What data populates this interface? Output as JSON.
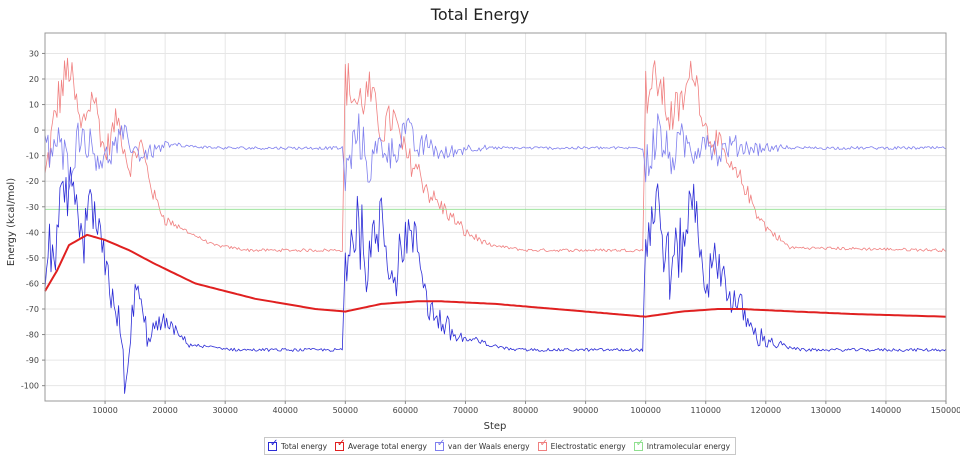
{
  "chart_data": {
    "type": "line",
    "title": "Total Energy",
    "xlabel": "Step",
    "ylabel": "Energy (kcal/mol)",
    "xlim": [
      0,
      150000
    ],
    "ylim": [
      -106,
      38
    ],
    "x_ticks": [
      10000,
      20000,
      30000,
      40000,
      50000,
      60000,
      70000,
      80000,
      90000,
      100000,
      110000,
      120000,
      130000,
      140000,
      150000
    ],
    "y_ticks": [
      30,
      20,
      10,
      0,
      -10,
      -20,
      -30,
      -40,
      -50,
      -60,
      -70,
      -80,
      -90,
      -100
    ],
    "grid": true,
    "legend_position": "bottom",
    "series": [
      {
        "name": "Total energy",
        "color": "#2b2bd6",
        "x": [
          0,
          2000,
          4000,
          6000,
          8000,
          10000,
          12000,
          13500,
          15000,
          17000,
          20000,
          24000,
          28000,
          32000,
          40000,
          49500,
          50000,
          52000,
          54000,
          56000,
          58000,
          60000,
          62000,
          64000,
          66000,
          68000,
          70000,
          74000,
          78000,
          90000,
          99500,
          100000,
          102000,
          104000,
          106000,
          108000,
          110000,
          112000,
          114000,
          116000,
          118000,
          120000,
          122000,
          126000,
          135000,
          150000
        ],
        "y": [
          -55,
          -40,
          -25,
          -45,
          -30,
          -55,
          -70,
          -103,
          -60,
          -80,
          -75,
          -84,
          -85,
          -86,
          -86,
          -86,
          -50,
          -35,
          -55,
          -30,
          -60,
          -40,
          -45,
          -70,
          -75,
          -80,
          -82,
          -84,
          -86,
          -86,
          -86,
          -40,
          -30,
          -55,
          -45,
          -25,
          -60,
          -50,
          -65,
          -70,
          -80,
          -82,
          -84,
          -86,
          -86,
          -86
        ],
        "style": "noisy"
      },
      {
        "name": "Average total energy",
        "color": "#e02020",
        "x": [
          0,
          2000,
          4000,
          7000,
          10000,
          14000,
          18000,
          25000,
          35000,
          45000,
          50000,
          56000,
          62000,
          66000,
          75000,
          85000,
          95000,
          100000,
          106000,
          112000,
          116000,
          125000,
          135000,
          150000
        ],
        "y": [
          -63,
          -55,
          -45,
          -41,
          -43,
          -47,
          -52,
          -60,
          -66,
          -70,
          -71,
          -68,
          -67,
          -67,
          -68,
          -70,
          -72,
          -73,
          -71,
          -70,
          -70,
          -71,
          -72,
          -73
        ],
        "style": "smooth"
      },
      {
        "name": "van der Waals energy",
        "color": "#8080ee",
        "x": [
          0,
          2000,
          4000,
          6000,
          8000,
          10000,
          13000,
          16000,
          20000,
          30000,
          49500,
          50000,
          52000,
          54000,
          56000,
          58000,
          60000,
          62000,
          64000,
          66000,
          70000,
          80000,
          99500,
          100000,
          102000,
          104000,
          106000,
          108000,
          110000,
          112000,
          114000,
          118000,
          150000
        ],
        "y": [
          -10,
          -5,
          -15,
          0,
          -8,
          -12,
          -2,
          -10,
          -6,
          -7,
          -7,
          -20,
          0,
          -15,
          -5,
          -10,
          2,
          -8,
          -5,
          -10,
          -7,
          -7,
          -7,
          -15,
          0,
          -12,
          -5,
          -8,
          -2,
          -10,
          -6,
          -7,
          -7
        ],
        "style": "noisy-light"
      },
      {
        "name": "Electrostatic energy",
        "color": "#f08080",
        "x": [
          0,
          2000,
          4000,
          6000,
          8000,
          10000,
          12000,
          14000,
          16000,
          18000,
          20000,
          24000,
          28000,
          34000,
          49500,
          50000,
          52000,
          54000,
          56000,
          58000,
          60000,
          62000,
          64000,
          66000,
          68000,
          70000,
          74000,
          80000,
          99500,
          100000,
          102000,
          104000,
          106000,
          108000,
          110000,
          112000,
          114000,
          116000,
          118000,
          120000,
          124000,
          150000
        ],
        "y": [
          -20,
          10,
          25,
          0,
          15,
          -10,
          5,
          -15,
          -5,
          -25,
          -35,
          -40,
          -45,
          -47,
          -47,
          20,
          10,
          15,
          0,
          5,
          -10,
          -15,
          -25,
          -30,
          -35,
          -40,
          -45,
          -47,
          -47,
          15,
          20,
          5,
          10,
          25,
          0,
          -5,
          -15,
          -20,
          -30,
          -38,
          -46,
          -47
        ],
        "style": "noisy-light"
      },
      {
        "name": "Intramolecular energy",
        "color": "#90e090",
        "x": [
          0,
          150000
        ],
        "y": [
          -31,
          -31
        ],
        "style": "flat"
      }
    ]
  },
  "legend": {
    "items": [
      {
        "label": "Total energy",
        "color": "#2b2bd6"
      },
      {
        "label": "Average total energy",
        "color": "#e02020"
      },
      {
        "label": "van der Waals energy",
        "color": "#8080ee"
      },
      {
        "label": "Electrostatic energy",
        "color": "#f08080"
      },
      {
        "label": "Intramolecular energy",
        "color": "#90e090"
      }
    ]
  }
}
